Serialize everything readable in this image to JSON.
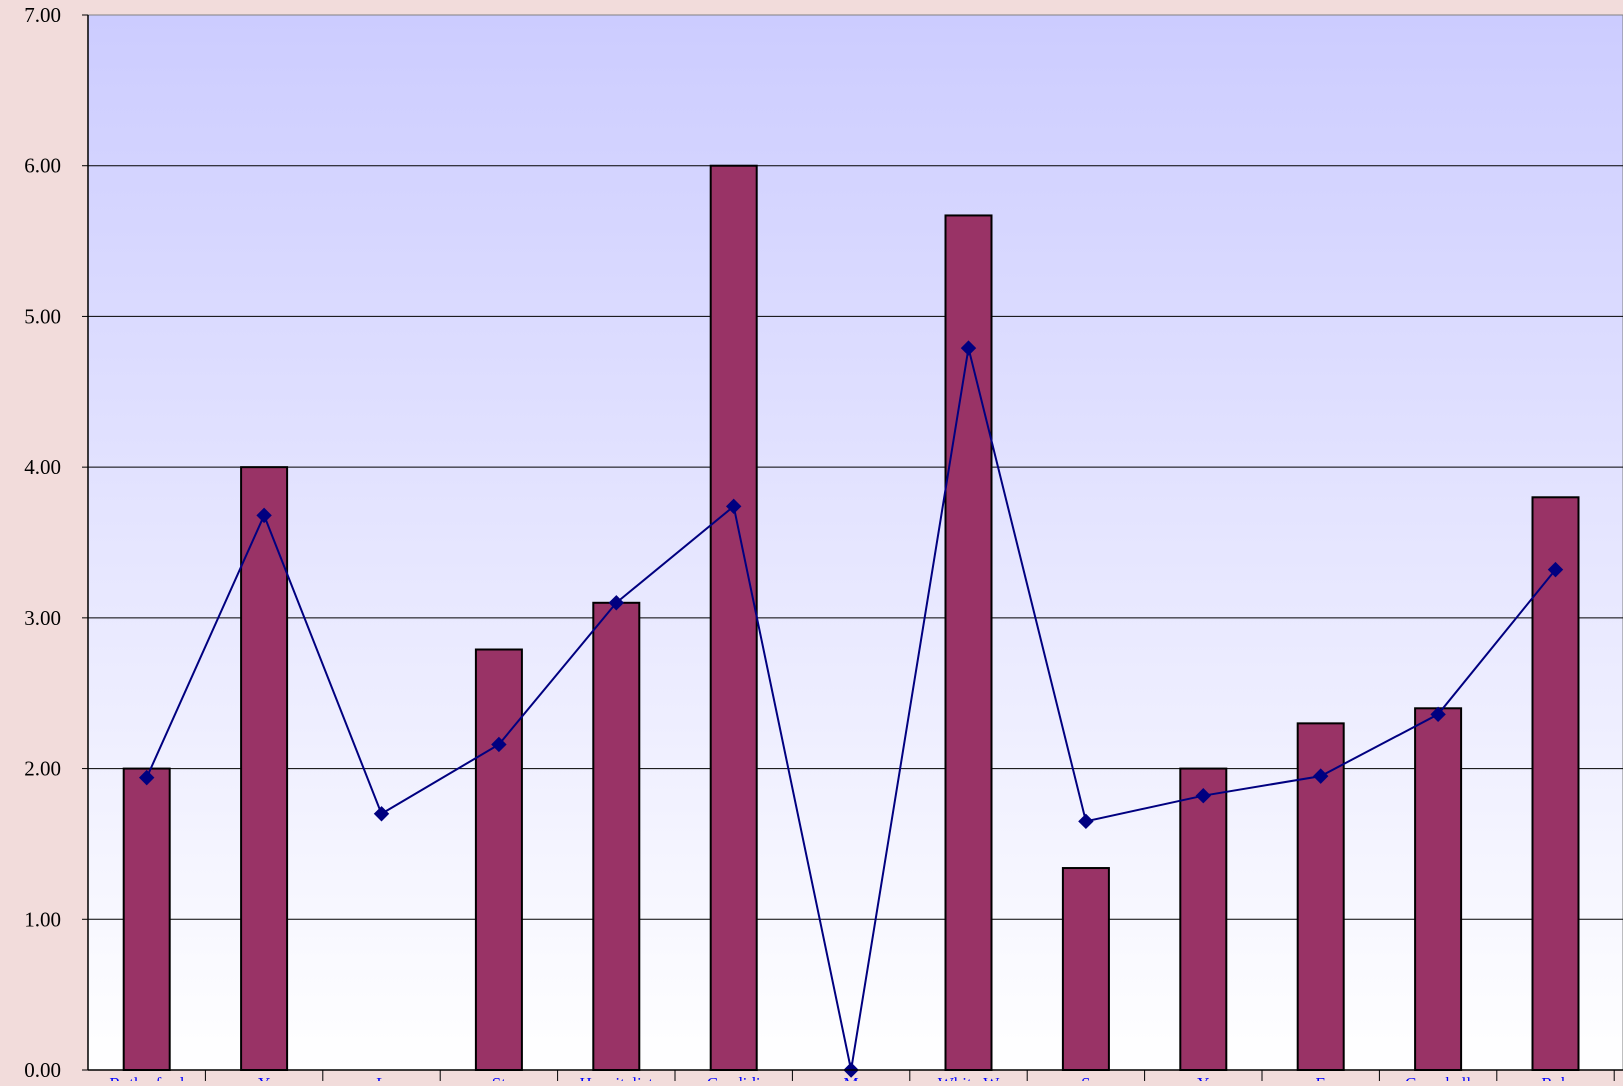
{
  "chart_data": {
    "type": "bar",
    "title": "",
    "xlabel": "",
    "ylabel": "",
    "ylim": [
      0,
      7
    ],
    "yticks": [
      "0.00",
      "1.00",
      "2.00",
      "3.00",
      "4.00",
      "5.00",
      "6.00",
      "7.00"
    ],
    "grid": true,
    "categories": [
      "Rutherford",
      "Y",
      "L",
      "St",
      "Hospitalist",
      "Candidi",
      "M",
      "White W",
      "S",
      "Y",
      "E",
      "Campbell",
      "Rob"
    ],
    "series": [
      {
        "type": "bar",
        "color": "#993366",
        "values": [
          2.0,
          4.0,
          0,
          2.79,
          3.1,
          6.0,
          0,
          5.67,
          1.34,
          2.0,
          2.3,
          2.4,
          3.8
        ]
      },
      {
        "type": "line",
        "color": "#000080",
        "marker": "diamond",
        "values": [
          1.94,
          3.68,
          1.7,
          2.16,
          3.1,
          3.74,
          0.0,
          4.79,
          1.65,
          1.82,
          1.95,
          2.36,
          3.32
        ]
      }
    ]
  }
}
